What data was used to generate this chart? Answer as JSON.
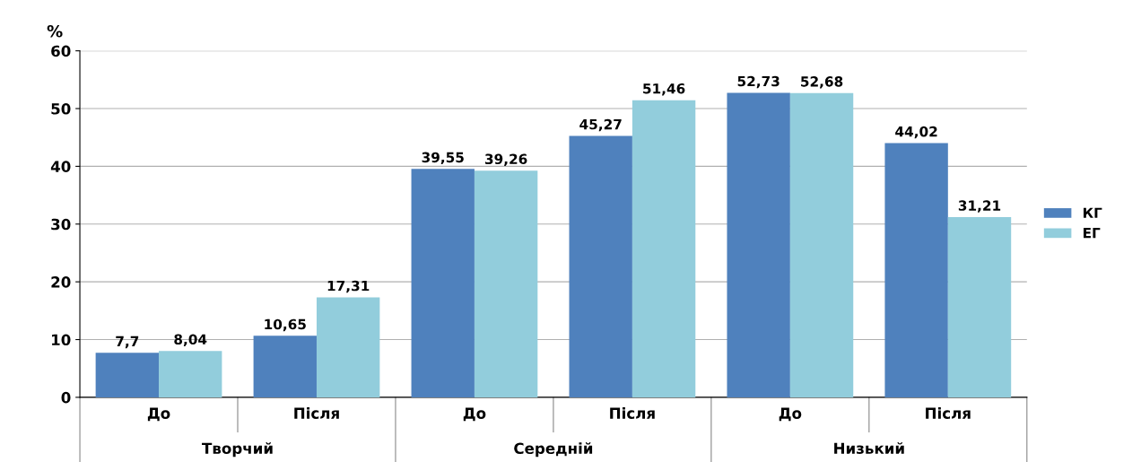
{
  "chart_data": {
    "type": "bar",
    "ylabel": "%",
    "categories": [
      "До",
      "Після",
      "До",
      "Після",
      "До",
      "Після"
    ],
    "series": [
      {
        "name": "КГ",
        "color": "#4f81bd",
        "values": [
          7.7,
          10.65,
          39.55,
          45.27,
          52.73,
          44.02
        ],
        "value_labels": [
          "7,7",
          "10,65",
          "39,55",
          "45,27",
          "52,73",
          "44,02"
        ]
      },
      {
        "name": "ЕГ",
        "color": "#92cddc",
        "values": [
          8.04,
          17.31,
          39.26,
          51.46,
          52.68,
          31.21
        ],
        "value_labels": [
          "8,04",
          "17,31",
          "39,26",
          "51,46",
          "52,68",
          "31,21"
        ]
      }
    ],
    "ylim": [
      0,
      60
    ],
    "yticks": [
      0,
      10,
      20,
      30,
      40,
      50,
      60
    ],
    "grid": "y",
    "legend": "right",
    "annotations": [
      "Творчий",
      "Середній",
      "Низький"
    ]
  }
}
